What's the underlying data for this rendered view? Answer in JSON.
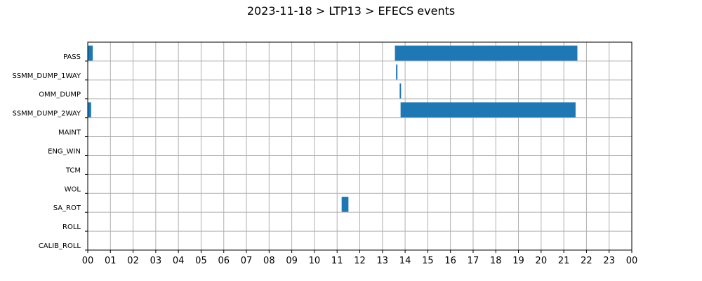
{
  "chart_data": {
    "type": "gantt",
    "title": "2023-11-18 > LTP13 > EFECS events",
    "x_unit": "hour",
    "xlim": [
      0,
      24
    ],
    "x_ticks": [
      "00",
      "01",
      "02",
      "03",
      "04",
      "05",
      "06",
      "07",
      "08",
      "09",
      "10",
      "11",
      "12",
      "13",
      "14",
      "15",
      "16",
      "17",
      "18",
      "19",
      "20",
      "21",
      "22",
      "23",
      "00"
    ],
    "categories": [
      "PASS",
      "SSMM_DUMP_1WAY",
      "OMM_DUMP",
      "SSMM_DUMP_2WAY",
      "MAINT",
      "ENG_WIN",
      "TCM",
      "WOL",
      "SA_ROT",
      "ROLL",
      "CALIB_ROLL"
    ],
    "events": [
      {
        "category": "PASS",
        "start": 0.0,
        "end": 0.22
      },
      {
        "category": "PASS",
        "start": 13.55,
        "end": 21.6
      },
      {
        "category": "SSMM_DUMP_1WAY",
        "start": 13.6,
        "end": 13.66
      },
      {
        "category": "OMM_DUMP",
        "start": 13.76,
        "end": 13.82
      },
      {
        "category": "SSMM_DUMP_2WAY",
        "start": 0.0,
        "end": 0.15
      },
      {
        "category": "SSMM_DUMP_2WAY",
        "start": 13.8,
        "end": 21.52
      },
      {
        "category": "SA_ROT",
        "start": 11.2,
        "end": 11.5
      }
    ],
    "bar_color": "#1f77b4",
    "grid": true,
    "legend": false
  }
}
